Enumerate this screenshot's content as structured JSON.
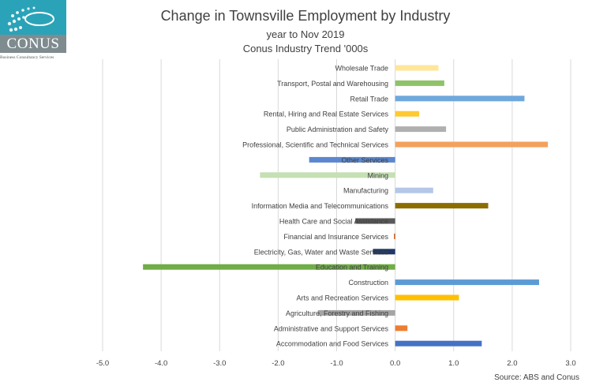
{
  "logo": {
    "name": "CONUS",
    "tagline": "Business Consultancy Services"
  },
  "chart_data": {
    "type": "bar",
    "orientation": "horizontal",
    "title": "Change in Townsville Employment by Industry",
    "subtitle": "year to Nov 2019",
    "subtitle2": "Conus Industry Trend '000s",
    "source": "Source: ABS and Conus",
    "xlim": [
      -5.0,
      3.0
    ],
    "xticks": [
      "-5.0",
      "-4.0",
      "-3.0",
      "-2.0",
      "-1.0",
      "0.0",
      "1.0",
      "2.0",
      "3.0"
    ],
    "grid": true,
    "categories": [
      "Wholesale Trade",
      "Transport, Postal and Warehousing",
      "Retail Trade",
      "Rental, Hiring and Real Estate Services",
      "Public Administration and Safety",
      "Professional, Scientific and Technical Services",
      "Other Services",
      "Mining",
      "Manufacturing",
      "Information Media and Telecommunications",
      "Health Care and Social Assistance",
      "Financial and Insurance Services",
      "Electricity, Gas, Water and Waste Services",
      "Education and Training",
      "Construction",
      "Arts and Recreation Services",
      "Agriculture, Forestry and Fishing",
      "Administrative and Support Services",
      "Accommodation and Food Services"
    ],
    "values": [
      0.74,
      0.84,
      2.21,
      0.41,
      0.87,
      2.61,
      -1.47,
      -2.31,
      0.65,
      1.59,
      -0.68,
      -0.02,
      -0.38,
      -4.31,
      2.46,
      1.09,
      -1.32,
      0.21,
      1.48
    ],
    "colors": [
      "#ffe699",
      "#8fc36a",
      "#6fa8dc",
      "#ffc934",
      "#b0b0b0",
      "#f4a15d",
      "#5b87cf",
      "#c5e0b4",
      "#b4c7e7",
      "#8c6d00",
      "#595959",
      "#c55a11",
      "#203864",
      "#70ad47",
      "#5b9bd5",
      "#ffc000",
      "#a5a5a5",
      "#ed7d31",
      "#4472c4"
    ]
  }
}
